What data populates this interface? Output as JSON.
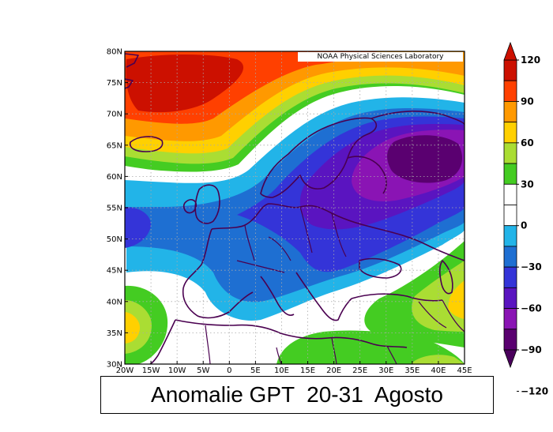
{
  "title": "Anomalie GPT  20-31  Agosto",
  "credit": "NOAA Physical Sciences Laboratory",
  "map": {
    "lon_ticks": [
      "20W",
      "15W",
      "10W",
      "5W",
      "0",
      "5E",
      "10E",
      "15E",
      "20E",
      "25E",
      "30E",
      "35E",
      "40E",
      "45E"
    ],
    "lat_ticks": [
      "80N",
      "75N",
      "70N",
      "65N",
      "60N",
      "55N",
      "50N",
      "45N",
      "40N",
      "35N",
      "30N"
    ],
    "lon_range": [
      -20,
      45
    ],
    "lat_range": [
      30,
      80
    ],
    "grid": true
  },
  "colorbar": {
    "labels": [
      "120",
      "90",
      "60",
      "30",
      "0",
      "−30",
      "−60",
      "−90",
      "−120"
    ],
    "bands": [
      "#cc1000",
      "#ff4000",
      "#ff9900",
      "#ffd000",
      "#aadd33",
      "#44cc22",
      "#ffffff",
      "#ffffff",
      "#22b4e8",
      "#1e6fd2",
      "#3434d8",
      "#5a14c0",
      "#8a14b4",
      "#5a0070"
    ],
    "top_arrow_color": "#cc1000",
    "bottom_arrow_color": "#4a005c"
  }
}
